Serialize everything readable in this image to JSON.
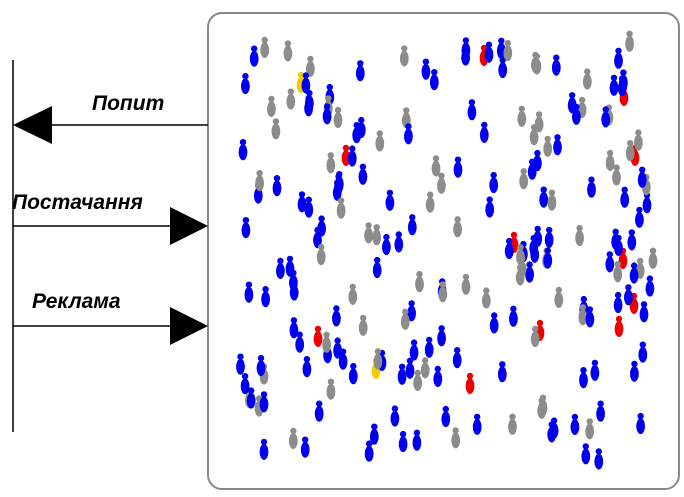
{
  "flows": [
    {
      "label": "Попит",
      "direction": "to-left"
    },
    {
      "label": "Постачання",
      "direction": "to-right"
    },
    {
      "label": "Реклама",
      "direction": "to-right"
    }
  ],
  "market": {
    "agent_colors": {
      "blue": "#0000ee",
      "gray": "#8c8c8c",
      "red": "#ee0000",
      "yellow": "#f2cc00"
    }
  }
}
